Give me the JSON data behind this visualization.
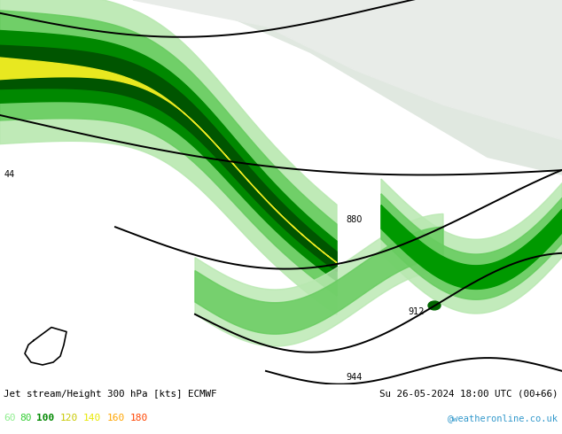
{
  "title_left": "Jet stream/Height 300 hPa [kts] ECMWF",
  "title_right": "Su 26-05-2024 18:00 UTC (00+66)",
  "credit": "@weatheronline.co.uk",
  "legend_values": [
    "60",
    "80",
    "100",
    "120",
    "140",
    "160",
    "180"
  ],
  "legend_label_colors": [
    "#90ee90",
    "#32cd32",
    "#008800",
    "#c8c800",
    "#e8e800",
    "#ffa500",
    "#ff4400"
  ],
  "figsize": [
    6.34,
    4.9
  ],
  "dpi": 100,
  "bg_color": "#e8f0e0",
  "land_color": "#d8e8d0",
  "sea_color": "#f0f4f0",
  "coast_color": "#888888",
  "contour_color": "#000000",
  "jet_60_color": "#b8e8b0",
  "jet_80_color": "#78d870",
  "jet_100_color": "#009900",
  "jet_120_color": "#006600",
  "jet_140_color": "#e8e800",
  "jet_160_color": "#ffa500",
  "jet_180_color": "#ff4400",
  "bottom_bg": "#ffffff"
}
